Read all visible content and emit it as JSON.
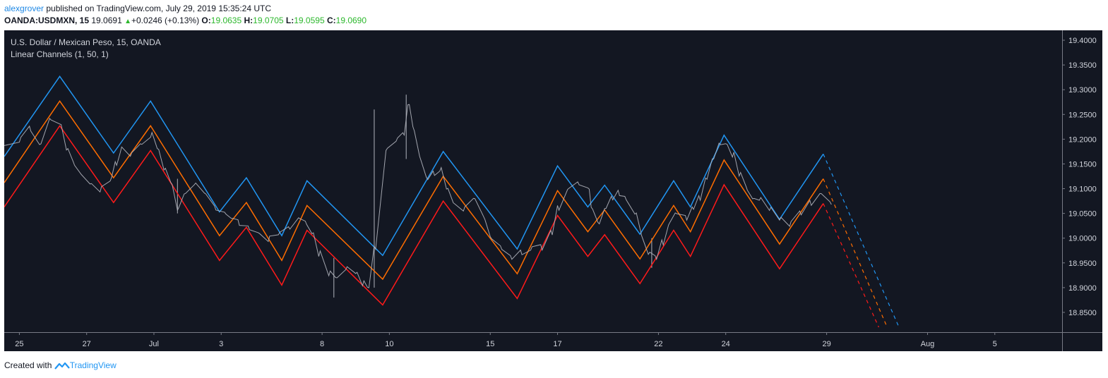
{
  "header": {
    "author": "alexgrover",
    "published": "published on TradingView.com, July 29, 2019 15:35:24 UTC",
    "symbol": "OANDA:USDMXN, 15",
    "last": "19.0691",
    "change": "+0.0246 (+0.13%)",
    "open_label": "O:",
    "open": "19.0635",
    "high_label": "H:",
    "high": "19.0705",
    "low_label": "L:",
    "low": "19.0595",
    "close_label": "C:",
    "close": "19.0690"
  },
  "footer": {
    "created_with": "Created with",
    "brand": "TradingView"
  },
  "colors": {
    "background": "#131722",
    "axis_background": "#131722",
    "upper_channel": "#2196f3",
    "middle_channel": "#ff6d00",
    "lower_channel": "#ff1a1a",
    "price": "#b2b5be",
    "text": "#d1d4dc",
    "grid_line": "#363a45"
  },
  "chart_data": {
    "type": "line",
    "title": "U.S. Dollar / Mexican Peso, 15, OANDA",
    "indicator": "Linear Channels (1, 50, 1)",
    "xlabel": "",
    "ylabel": "",
    "ylim": [
      18.81,
      19.42
    ],
    "y_ticks": [
      "19.4000",
      "19.3500",
      "19.3000",
      "19.2500",
      "19.2000",
      "19.1500",
      "19.1000",
      "19.0500",
      "19.0000",
      "18.9500",
      "18.9000",
      "18.8500"
    ],
    "x_ticks": [
      {
        "label": "25",
        "t": 0.0
      },
      {
        "label": "27",
        "t": 2.0
      },
      {
        "label": "Jul",
        "t": 4.0
      },
      {
        "label": "3",
        "t": 6.0
      },
      {
        "label": "8",
        "t": 9.0
      },
      {
        "label": "10",
        "t": 11.0
      },
      {
        "label": "15",
        "t": 14.0
      },
      {
        "label": "17",
        "t": 16.0
      },
      {
        "label": "22",
        "t": 19.0
      },
      {
        "label": "24",
        "t": 21.0
      },
      {
        "label": "29",
        "t": 24.0
      },
      {
        "label": "Aug",
        "t": 27.0
      },
      {
        "label": "5",
        "t": 29.0
      }
    ],
    "xlim": [
      -0.45,
      31.0
    ],
    "grid": false,
    "series": [
      {
        "name": "Upper channel",
        "role": "upper",
        "solid": [
          [
            -0.45,
            19.165
          ],
          [
            1.2,
            19.327
          ],
          [
            2.8,
            19.172
          ],
          [
            3.9,
            19.277
          ],
          [
            5.95,
            19.053
          ],
          [
            6.75,
            19.122
          ],
          [
            7.8,
            19.005
          ],
          [
            8.55,
            19.116
          ],
          [
            10.8,
            18.965
          ],
          [
            12.6,
            19.175
          ],
          [
            14.8,
            18.978
          ],
          [
            16.0,
            19.146
          ],
          [
            16.9,
            19.063
          ],
          [
            17.4,
            19.107
          ],
          [
            18.45,
            19.008
          ],
          [
            19.45,
            19.116
          ],
          [
            19.95,
            19.063
          ],
          [
            20.95,
            19.208
          ],
          [
            22.6,
            19.038
          ],
          [
            23.9,
            19.17
          ]
        ],
        "projection": [
          [
            23.9,
            19.17
          ],
          [
            26.15,
            18.82
          ]
        ]
      },
      {
        "name": "Middle channel",
        "role": "middle",
        "solid": [
          [
            -0.45,
            19.112
          ],
          [
            1.2,
            19.277
          ],
          [
            2.8,
            19.122
          ],
          [
            3.9,
            19.227
          ],
          [
            5.95,
            19.005
          ],
          [
            6.75,
            19.072
          ],
          [
            7.8,
            18.955
          ],
          [
            8.55,
            19.066
          ],
          [
            10.8,
            18.917
          ],
          [
            12.6,
            19.125
          ],
          [
            14.8,
            18.928
          ],
          [
            16.0,
            19.096
          ],
          [
            16.9,
            19.013
          ],
          [
            17.4,
            19.057
          ],
          [
            18.45,
            18.958
          ],
          [
            19.45,
            19.066
          ],
          [
            19.95,
            19.013
          ],
          [
            20.95,
            19.158
          ],
          [
            22.6,
            18.988
          ],
          [
            23.9,
            19.12
          ]
        ],
        "projection": [
          [
            23.9,
            19.12
          ],
          [
            25.8,
            18.82
          ]
        ]
      },
      {
        "name": "Lower channel",
        "role": "lower",
        "solid": [
          [
            -0.45,
            19.063
          ],
          [
            1.2,
            19.227
          ],
          [
            2.8,
            19.072
          ],
          [
            3.9,
            19.177
          ],
          [
            5.95,
            18.955
          ],
          [
            6.75,
            19.022
          ],
          [
            7.8,
            18.905
          ],
          [
            8.55,
            19.016
          ],
          [
            10.8,
            18.865
          ],
          [
            12.6,
            19.075
          ],
          [
            14.8,
            18.878
          ],
          [
            16.0,
            19.046
          ],
          [
            16.9,
            18.963
          ],
          [
            17.4,
            19.007
          ],
          [
            18.45,
            18.908
          ],
          [
            19.45,
            19.016
          ],
          [
            19.95,
            18.963
          ],
          [
            20.95,
            19.108
          ],
          [
            22.6,
            18.938
          ],
          [
            23.9,
            19.07
          ]
        ],
        "projection": [
          [
            23.9,
            19.07
          ],
          [
            25.55,
            18.82
          ]
        ]
      },
      {
        "name": "USDMXN",
        "role": "price",
        "points": [
          [
            -0.45,
            19.18
          ],
          [
            0.0,
            19.2
          ],
          [
            0.3,
            19.22
          ],
          [
            0.6,
            19.19
          ],
          [
            0.9,
            19.24
          ],
          [
            1.2,
            19.23
          ],
          [
            1.4,
            19.18
          ],
          [
            1.6,
            19.15
          ],
          [
            1.8,
            19.13
          ],
          [
            2.1,
            19.11
          ],
          [
            2.4,
            19.1
          ],
          [
            2.7,
            19.12
          ],
          [
            2.85,
            19.15
          ],
          [
            3.0,
            19.18
          ],
          [
            3.3,
            19.17
          ],
          [
            3.6,
            19.19
          ],
          [
            3.9,
            19.21
          ],
          [
            4.1,
            19.18
          ],
          [
            4.3,
            19.14
          ],
          [
            4.5,
            19.11
          ],
          [
            4.7,
            19.06
          ],
          [
            4.9,
            19.09
          ],
          [
            5.2,
            19.11
          ],
          [
            5.5,
            19.09
          ],
          [
            5.8,
            19.06
          ],
          [
            6.1,
            19.05
          ],
          [
            6.3,
            19.04
          ],
          [
            6.5,
            19.03
          ],
          [
            6.8,
            19.02
          ],
          [
            7.1,
            19.01
          ],
          [
            7.4,
            19.0
          ],
          [
            7.7,
            19.01
          ],
          [
            8.0,
            19.02
          ],
          [
            8.3,
            19.04
          ],
          [
            8.5,
            19.03
          ],
          [
            8.7,
            19.01
          ],
          [
            8.9,
            18.97
          ],
          [
            9.2,
            18.93
          ],
          [
            9.4,
            18.92
          ],
          [
            9.7,
            18.94
          ],
          [
            10.0,
            18.93
          ],
          [
            10.2,
            18.91
          ],
          [
            10.35,
            18.9
          ],
          [
            10.55,
            18.98
          ],
          [
            10.9,
            19.18
          ],
          [
            11.2,
            19.2
          ],
          [
            11.4,
            19.21
          ],
          [
            11.55,
            19.27
          ],
          [
            11.7,
            19.22
          ],
          [
            11.9,
            19.16
          ],
          [
            12.1,
            19.12
          ],
          [
            12.3,
            19.13
          ],
          [
            12.5,
            19.14
          ],
          [
            12.7,
            19.1
          ],
          [
            12.9,
            19.07
          ],
          [
            13.2,
            19.06
          ],
          [
            13.5,
            19.08
          ],
          [
            13.8,
            19.04
          ],
          [
            14.0,
            19.0
          ],
          [
            14.3,
            18.98
          ],
          [
            14.6,
            18.96
          ],
          [
            14.9,
            18.97
          ],
          [
            15.2,
            18.98
          ],
          [
            15.5,
            18.98
          ],
          [
            15.8,
            19.01
          ],
          [
            16.0,
            19.06
          ],
          [
            16.3,
            19.1
          ],
          [
            16.6,
            19.11
          ],
          [
            16.9,
            19.1
          ],
          [
            17.0,
            19.06
          ],
          [
            17.2,
            19.03
          ],
          [
            17.4,
            19.06
          ],
          [
            17.6,
            19.08
          ],
          [
            17.8,
            19.09
          ],
          [
            18.0,
            19.08
          ],
          [
            18.3,
            19.05
          ],
          [
            18.5,
            19.0
          ],
          [
            18.7,
            18.97
          ],
          [
            18.9,
            18.96
          ],
          [
            19.1,
            18.99
          ],
          [
            19.3,
            19.03
          ],
          [
            19.5,
            19.05
          ],
          [
            19.8,
            19.04
          ],
          [
            20.0,
            19.06
          ],
          [
            20.2,
            19.08
          ],
          [
            20.4,
            19.12
          ],
          [
            20.6,
            19.16
          ],
          [
            20.8,
            19.19
          ],
          [
            21.0,
            19.19
          ],
          [
            21.2,
            19.17
          ],
          [
            21.4,
            19.13
          ],
          [
            21.6,
            19.1
          ],
          [
            21.8,
            19.08
          ],
          [
            22.0,
            19.08
          ],
          [
            22.3,
            19.06
          ],
          [
            22.6,
            19.04
          ],
          [
            22.9,
            19.03
          ],
          [
            23.2,
            19.05
          ],
          [
            23.5,
            19.07
          ],
          [
            23.8,
            19.09
          ],
          [
            24.1,
            19.07
          ]
        ]
      }
    ],
    "spikes": [
      {
        "t": 10.55,
        "low": 18.9,
        "high": 19.26
      },
      {
        "t": 11.5,
        "low": 19.16,
        "high": 19.29
      },
      {
        "t": 9.35,
        "low": 18.88,
        "high": 18.96
      },
      {
        "t": 4.7,
        "low": 19.05,
        "high": 19.12
      },
      {
        "t": 18.8,
        "low": 18.94,
        "high": 19.0
      }
    ]
  }
}
